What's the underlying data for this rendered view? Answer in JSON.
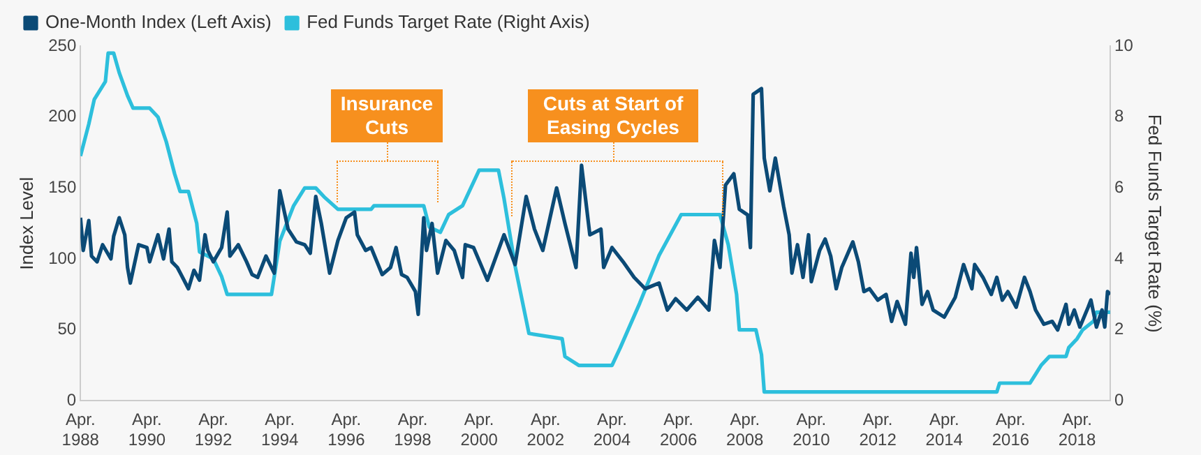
{
  "chart_data": {
    "type": "line",
    "ylabel": "Index Level",
    "y2label": "Fed Funds Target Rate (%)",
    "legend": "top left",
    "annotations": [
      "Insurance Cuts",
      "Cuts at Start of Easing Cycles"
    ],
    "xlim": [
      "1988-04",
      "2019-04"
    ],
    "xticks": [
      {
        "value": "1988-04",
        "label": "Apr. 1988"
      },
      {
        "value": "1990-04",
        "label": "Apr. 1990"
      },
      {
        "value": "1992-04",
        "label": "Apr. 1992"
      },
      {
        "value": "1994-04",
        "label": "Apr. 1994"
      },
      {
        "value": "1996-04",
        "label": "Apr. 1996"
      },
      {
        "value": "1998-04",
        "label": "Apr. 1998"
      },
      {
        "value": "2000-04",
        "label": "Apr. 2000"
      },
      {
        "value": "2002-04",
        "label": "Apr. 2002"
      },
      {
        "value": "2004-04",
        "label": "Apr. 2004"
      },
      {
        "value": "2006-04",
        "label": "Apr. 2006"
      },
      {
        "value": "2008-04",
        "label": "Apr. 2008"
      },
      {
        "value": "2010-04",
        "label": "Apr. 2010"
      },
      {
        "value": "2012-04",
        "label": "Apr. 2012"
      },
      {
        "value": "2014-04",
        "label": "Apr. 2014"
      },
      {
        "value": "2016-04",
        "label": "Apr. 2016"
      },
      {
        "value": "2018-04",
        "label": "Apr. 2018"
      }
    ],
    "ylim": [
      0,
      250
    ],
    "yticks": [
      0,
      50,
      100,
      150,
      200,
      250
    ],
    "y2lim": [
      0,
      10
    ],
    "y2ticks": [
      0,
      2,
      4,
      6,
      8,
      10
    ],
    "series": [
      {
        "name": "One-Month Index (Left Axis)",
        "color": "#0b4a76",
        "x": [
          "1988-04",
          "1988-05",
          "1988-07",
          "1988-08",
          "1988-10",
          "1988-12",
          "1989-03",
          "1989-04",
          "1989-06",
          "1989-08",
          "1989-09",
          "1989-10",
          "1990-01",
          "1990-04",
          "1990-05",
          "1990-08",
          "1990-10",
          "1990-12",
          "1991-01",
          "1991-03",
          "1991-07",
          "1991-09",
          "1991-11",
          "1992-01",
          "1992-02",
          "1992-04",
          "1992-07",
          "1992-09",
          "1992-10",
          "1993-01",
          "1993-04",
          "1993-06",
          "1993-08",
          "1993-11",
          "1994-02",
          "1994-04",
          "1994-07",
          "1994-10",
          "1995-01",
          "1995-03",
          "1995-05",
          "1995-07",
          "1995-10",
          "1996-01",
          "1996-04",
          "1996-07",
          "1996-08",
          "1996-11",
          "1997-01",
          "1997-05",
          "1997-08",
          "1997-10",
          "1997-12",
          "1998-02",
          "1998-05",
          "1998-06",
          "1998-08",
          "1998-09",
          "1998-11",
          "1999-01",
          "1999-04",
          "1999-07",
          "1999-10",
          "1999-11",
          "2000-02",
          "2000-07",
          "2001-01",
          "2001-05",
          "2001-09",
          "2001-12",
          "2002-03",
          "2002-08",
          "2002-11",
          "2003-03",
          "2003-05",
          "2003-08",
          "2003-12",
          "2004-01",
          "2004-04",
          "2004-08",
          "2004-12",
          "2005-04",
          "2005-09",
          "2005-12",
          "2006-03",
          "2006-07",
          "2006-11",
          "2007-03",
          "2007-05",
          "2007-07",
          "2007-09",
          "2007-12",
          "2008-02",
          "2008-05",
          "2008-06",
          "2008-07",
          "2008-10",
          "2008-11",
          "2009-01",
          "2009-03",
          "2009-06",
          "2009-08",
          "2009-09",
          "2009-11",
          "2010-01",
          "2010-03",
          "2010-04",
          "2010-07",
          "2010-09",
          "2010-11",
          "2011-01",
          "2011-03",
          "2011-07",
          "2011-09",
          "2011-11",
          "2012-01",
          "2012-04",
          "2012-07",
          "2012-09",
          "2012-11",
          "2013-02",
          "2013-04",
          "2013-05",
          "2013-06",
          "2013-08",
          "2013-10",
          "2013-12",
          "2014-04",
          "2014-08",
          "2014-11",
          "2015-02",
          "2015-03",
          "2015-06",
          "2015-09",
          "2015-11",
          "2016-01",
          "2016-03",
          "2016-06",
          "2016-09",
          "2016-11",
          "2017-01",
          "2017-04",
          "2017-07",
          "2017-09",
          "2017-12",
          "2018-01",
          "2018-03",
          "2018-05",
          "2018-08",
          "2018-09",
          "2018-11",
          "2019-01",
          "2019-02",
          "2019-03",
          "2019-04"
        ],
        "values": [
          129,
          106,
          127,
          102,
          98,
          110,
          100,
          116,
          129,
          117,
          94,
          83,
          110,
          108,
          98,
          117,
          100,
          121,
          98,
          94,
          79,
          92,
          85,
          117,
          106,
          98,
          108,
          133,
          102,
          110,
          98,
          89,
          87,
          102,
          90,
          148,
          121,
          112,
          110,
          104,
          144,
          125,
          90,
          113,
          129,
          133,
          117,
          106,
          108,
          89,
          94,
          108,
          89,
          87,
          77,
          61,
          129,
          106,
          125,
          90,
          113,
          106,
          87,
          110,
          108,
          85,
          117,
          96,
          144,
          121,
          106,
          150,
          125,
          94,
          166,
          117,
          121,
          94,
          108,
          98,
          87,
          79,
          83,
          64,
          72,
          64,
          73,
          64,
          113,
          94,
          152,
          160,
          135,
          131,
          108,
          216,
          220,
          171,
          148,
          171,
          137,
          117,
          90,
          110,
          87,
          117,
          84,
          106,
          114,
          102,
          79,
          94,
          112,
          98,
          77,
          79,
          71,
          75,
          56,
          70,
          54,
          104,
          87,
          108,
          68,
          77,
          64,
          59,
          73,
          96,
          79,
          96,
          87,
          75,
          87,
          71,
          77,
          66,
          87,
          77,
          64,
          54,
          56,
          50,
          68,
          54,
          64,
          52,
          66,
          71,
          52,
          64,
          52,
          77,
          75
        ]
      },
      {
        "name": "Fed Funds Target Rate (Right Axis)",
        "color": "#2dbfdc",
        "axis": "y2",
        "x": [
          "1988-04",
          "1988-07",
          "1988-09",
          "1989-01",
          "1989-02",
          "1989-04",
          "1989-06",
          "1989-09",
          "1989-11",
          "1990-05",
          "1990-08",
          "1990-11",
          "1991-02",
          "1991-04",
          "1991-07",
          "1991-10",
          "1991-11",
          "1992-04",
          "1992-07",
          "1992-09",
          "1994-01",
          "1994-04",
          "1994-09",
          "1995-01",
          "1995-05",
          "1995-08",
          "1996-01",
          "1997-01",
          "1997-02",
          "1998-08",
          "1998-10",
          "1999-02",
          "1999-05",
          "1999-10",
          "2000-01",
          "2000-04",
          "2000-11",
          "2001-01",
          "2001-05",
          "2001-10",
          "2002-10",
          "2002-11",
          "2003-04",
          "2004-04",
          "2004-07",
          "2005-02",
          "2005-09",
          "2006-05",
          "2007-07",
          "2007-10",
          "2008-01",
          "2008-02",
          "2008-08",
          "2008-10",
          "2008-11",
          "2015-11",
          "2015-12",
          "2016-11",
          "2017-01",
          "2017-03",
          "2017-06",
          "2017-12",
          "2018-01",
          "2018-04",
          "2018-06",
          "2018-10",
          "2018-11",
          "2019-04"
        ],
        "values": [
          6.9,
          7.8,
          8.5,
          9.0,
          9.8,
          9.8,
          9.25,
          8.6,
          8.25,
          8.25,
          8.0,
          7.3,
          6.4,
          5.9,
          5.9,
          5.0,
          4.2,
          4.0,
          3.5,
          3.0,
          3.0,
          4.5,
          5.5,
          6.0,
          6.0,
          5.75,
          5.4,
          5.4,
          5.5,
          5.5,
          4.9,
          4.75,
          5.25,
          5.5,
          6.0,
          6.5,
          6.5,
          5.7,
          3.8,
          1.9,
          1.75,
          1.25,
          1.0,
          1.0,
          1.5,
          2.75,
          4.1,
          5.25,
          5.25,
          4.4,
          3.0,
          2.0,
          2.0,
          1.3,
          0.25,
          0.25,
          0.5,
          0.5,
          0.75,
          1.0,
          1.25,
          1.25,
          1.5,
          1.75,
          2.0,
          2.25,
          2.5,
          2.5
        ]
      }
    ]
  }
}
